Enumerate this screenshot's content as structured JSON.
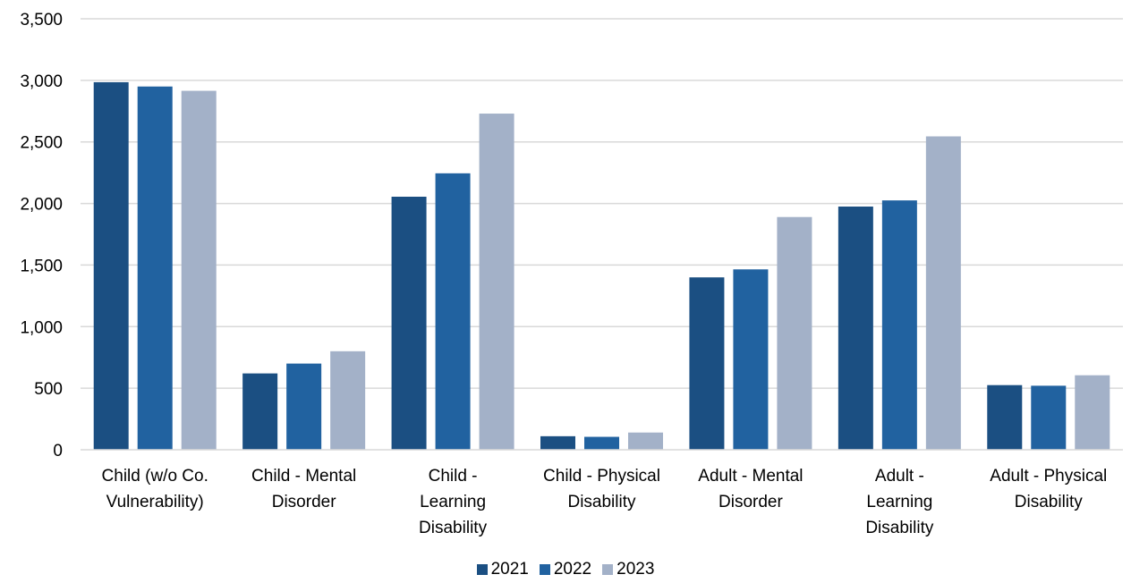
{
  "chart_data": {
    "type": "bar",
    "title": "",
    "xlabel": "",
    "ylabel": "",
    "ylim": [
      0,
      3500
    ],
    "yticks": [
      0,
      500,
      1000,
      1500,
      2000,
      2500,
      3000,
      3500
    ],
    "ytick_labels": [
      "0",
      "500",
      "1,000",
      "1,500",
      "2,000",
      "2,500",
      "3,000",
      "3,500"
    ],
    "grid": true,
    "legend_position": "bottom",
    "categories": [
      [
        "Child (w/o Co.",
        "Vulnerability)"
      ],
      [
        "Child - Mental",
        "Disorder"
      ],
      [
        "Child -",
        "Learning",
        "Disability"
      ],
      [
        "Child - Physical",
        "Disability"
      ],
      [
        "Adult - Mental",
        "Disorder"
      ],
      [
        "Adult -",
        "Learning",
        "Disability"
      ],
      [
        "Adult - Physical",
        "Disability"
      ]
    ],
    "series": [
      {
        "name": "2021",
        "color": "#1b4f82",
        "values": [
          2985,
          620,
          2055,
          110,
          1400,
          1975,
          525
        ]
      },
      {
        "name": "2022",
        "color": "#2162a0",
        "values": [
          2950,
          700,
          2245,
          105,
          1465,
          2025,
          520
        ]
      },
      {
        "name": "2023",
        "color": "#a3b1c8",
        "values": [
          2915,
          800,
          2730,
          140,
          1890,
          2545,
          605
        ]
      }
    ]
  }
}
